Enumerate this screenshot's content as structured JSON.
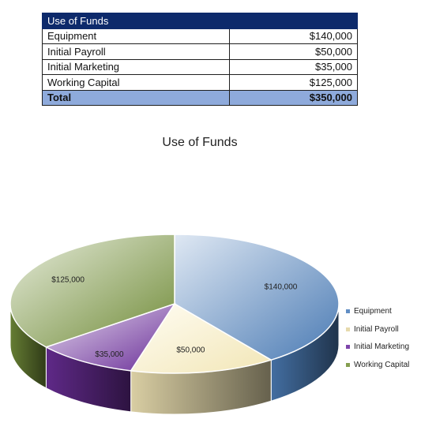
{
  "table": {
    "header": "Use of Funds",
    "rows": [
      {
        "item": "Equipment",
        "amount": "$140,000"
      },
      {
        "item": "Initial Payroll",
        "amount": "$50,000"
      },
      {
        "item": "Initial Marketing",
        "amount": "$35,000"
      },
      {
        "item": "Working Capital",
        "amount": "$125,000"
      }
    ],
    "total": {
      "item": "Total",
      "amount": "$350,000"
    }
  },
  "chart_data": {
    "type": "pie",
    "title": "Use of Funds",
    "categories": [
      "Equipment",
      "Initial Payroll",
      "Initial Marketing",
      "Working Capital"
    ],
    "values": [
      140000,
      50000,
      35000,
      125000
    ],
    "data_labels": [
      "$140,000",
      "$50,000",
      "$35,000",
      "$125,000"
    ],
    "colors": [
      "#4f81bd",
      "#fff2c0",
      "#7030a0",
      "#77933c"
    ],
    "legend_position": "right",
    "style": "3d"
  }
}
